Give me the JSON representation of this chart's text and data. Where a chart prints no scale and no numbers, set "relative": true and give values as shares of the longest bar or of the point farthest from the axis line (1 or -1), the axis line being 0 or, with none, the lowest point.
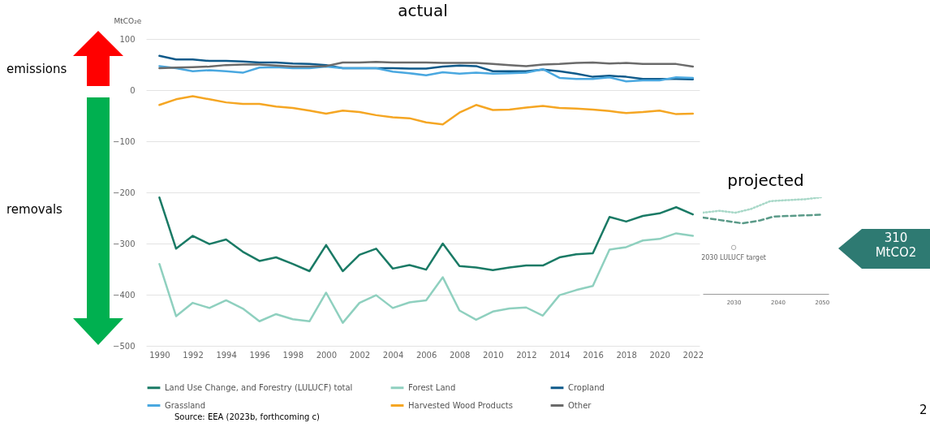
{
  "chart_data": [
    {
      "type": "line",
      "title": "actual",
      "ylabel": "MtCO₂e",
      "x": [
        1990,
        1991,
        1992,
        1993,
        1994,
        1995,
        1996,
        1997,
        1998,
        1999,
        2000,
        2001,
        2002,
        2003,
        2004,
        2005,
        2006,
        2007,
        2008,
        2009,
        2010,
        2011,
        2012,
        2013,
        2014,
        2015,
        2016,
        2017,
        2018,
        2019,
        2020,
        2021,
        2022
      ],
      "xlim": [
        1989.2,
        2022.4
      ],
      "xticks": [
        1990,
        1992,
        1994,
        1996,
        1998,
        2000,
        2002,
        2004,
        2006,
        2008,
        2010,
        2012,
        2014,
        2016,
        2018,
        2020,
        2022
      ],
      "ylim": [
        -500,
        100
      ],
      "yticks": [
        -500,
        -400,
        -300,
        -200,
        -100,
        0,
        100
      ],
      "grid": "y",
      "legend": "bottom",
      "series": [
        {
          "name": "Land Use Change, and Forestry (LULUCF) total",
          "color": "#1a7a65",
          "values": [
            -210,
            -310,
            -285,
            -301,
            -292,
            -316,
            -334,
            -327,
            -340,
            -354,
            -303,
            -354,
            -322,
            -310,
            -349,
            -342,
            -351,
            -300,
            -344,
            -347,
            -352,
            -347,
            -343,
            -343,
            -327,
            -321,
            -319,
            -248,
            -257,
            -246,
            -241,
            -229,
            -243
          ]
        },
        {
          "name": "Forest Land",
          "color": "#8fd0bf",
          "values": [
            -340,
            -442,
            -416,
            -426,
            -411,
            -427,
            -452,
            -438,
            -448,
            -452,
            -396,
            -455,
            -416,
            -401,
            -426,
            -415,
            -411,
            -366,
            -431,
            -449,
            -433,
            -427,
            -425,
            -441,
            -401,
            -391,
            -383,
            -312,
            -307,
            -294,
            -291,
            -280,
            -285
          ]
        },
        {
          "name": "Cropland",
          "color": "#0f5a8a",
          "values": [
            67,
            60,
            60,
            57,
            57,
            56,
            54,
            54,
            52,
            51,
            49,
            43,
            43,
            43,
            43,
            42,
            42,
            46,
            48,
            47,
            37,
            37,
            37,
            40,
            37,
            32,
            26,
            28,
            26,
            22,
            22,
            22,
            21
          ]
        },
        {
          "name": "Grassland",
          "color": "#4aa8e0",
          "values": [
            47,
            43,
            37,
            39,
            37,
            34,
            44,
            45,
            43,
            43,
            46,
            43,
            43,
            43,
            36,
            33,
            29,
            35,
            32,
            34,
            32,
            33,
            34,
            41,
            24,
            22,
            22,
            25,
            17,
            19,
            19,
            25,
            24
          ]
        },
        {
          "name": "Harvested Wood Products",
          "color": "#f5a623",
          "values": [
            -29,
            -18,
            -12,
            -18,
            -24,
            -27,
            -27,
            -32,
            -35,
            -40,
            -46,
            -40,
            -43,
            -49,
            -53,
            -55,
            -63,
            -67,
            -44,
            -29,
            -39,
            -38,
            -34,
            -31,
            -35,
            -36,
            -38,
            -41,
            -45,
            -43,
            -40,
            -47,
            -46
          ]
        },
        {
          "name": "Other",
          "color": "#6b6b6b",
          "values": [
            43,
            44,
            45,
            46,
            49,
            50,
            50,
            48,
            46,
            46,
            47,
            54,
            54,
            55,
            54,
            54,
            54,
            53,
            53,
            53,
            51,
            49,
            47,
            50,
            51,
            53,
            54,
            52,
            53,
            51,
            51,
            51,
            46
          ]
        }
      ],
      "annotations": [
        "emissions",
        "removals",
        "Source: EEA (2023b, forthcoming c)",
        "2"
      ]
    },
    {
      "type": "line",
      "title": "projected",
      "relative": true,
      "xlim": [
        2023,
        2051.5
      ],
      "xticks": [
        2030,
        2040,
        2050
      ],
      "series": [
        {
          "color": "#a8d8c8",
          "line_style": "dotted",
          "x": [
            2023,
            2026.7,
            2030.4,
            2034,
            2038.3,
            2042,
            2046.3,
            2049.8
          ],
          "values": [
            0.84,
            0.86,
            0.84,
            0.88,
            0.96,
            0.97,
            0.98,
            1
          ]
        },
        {
          "color": "#5a9a88",
          "line_style": "dashed",
          "x": [
            2023,
            2032,
            2036,
            2039,
            2050
          ],
          "values": [
            0.79,
            0.73,
            0.76,
            0.8,
            0.82
          ]
        },
        {
          "type": "scatter",
          "marker": "circle",
          "color": "#888888",
          "x": [
            2030
          ],
          "values": [
            0.48
          ]
        }
      ],
      "annotations": [
        {
          "text": "2030 LULUCF target",
          "x": 2030,
          "y": 0.48
        },
        "310 MtCO2"
      ]
    }
  ]
}
